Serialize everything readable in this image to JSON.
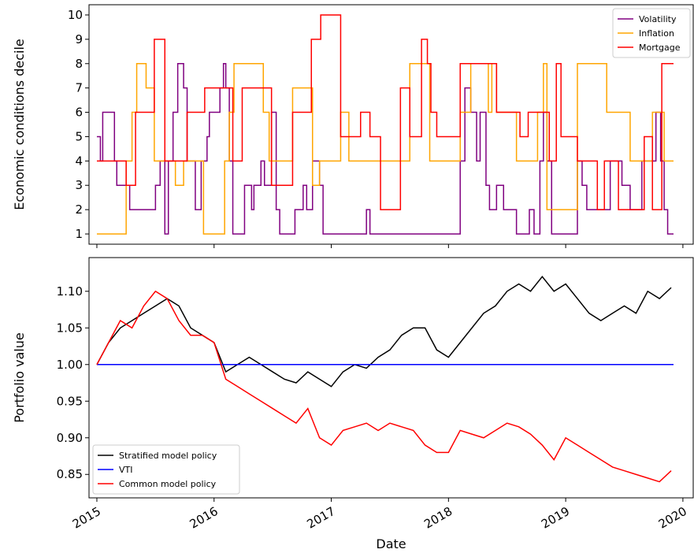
{
  "chart_data": [
    {
      "type": "line",
      "drawstyle": "steps-post",
      "ylabel": "Economic conditions decile",
      "xlim": [
        2014.933,
        2020.088
      ],
      "ylim": [
        0.58,
        10.42
      ],
      "xticks": [
        2015,
        2016,
        2017,
        2018,
        2019,
        2020
      ],
      "yticks": [
        1,
        2,
        3,
        4,
        5,
        6,
        7,
        8,
        9,
        10
      ],
      "legend": "upper right",
      "series": [
        {
          "name": "Volatility",
          "color": "#800080",
          "x": [
            2015.0,
            2015.03,
            2015.05,
            2015.15,
            2015.17,
            2015.28,
            2015.5,
            2015.54,
            2015.58,
            2015.61,
            2015.65,
            2015.69,
            2015.74,
            2015.77,
            2015.84,
            2015.89,
            2015.94,
            2015.96,
            2016.05,
            2016.08,
            2016.1,
            2016.13,
            2016.16,
            2016.26,
            2016.32,
            2016.34,
            2016.4,
            2016.43,
            2016.49,
            2016.53,
            2016.56,
            2016.69,
            2016.76,
            2016.79,
            2016.84,
            2016.9,
            2016.93,
            2017.3,
            2017.33,
            2018.1,
            2018.14,
            2018.19,
            2018.24,
            2018.27,
            2018.32,
            2018.35,
            2018.41,
            2018.47,
            2018.58,
            2018.69,
            2018.73,
            2018.78,
            2018.81,
            2018.84,
            2018.88,
            2019.1,
            2019.14,
            2019.18,
            2019.38,
            2019.48,
            2019.55,
            2019.65,
            2019.77,
            2019.81,
            2019.84,
            2019.87,
            2019.92
          ],
          "values": [
            5,
            4,
            6,
            4,
            3,
            2,
            3,
            4,
            1,
            4,
            6,
            8,
            7,
            4,
            2,
            4,
            5,
            6,
            7,
            8,
            7,
            4,
            1,
            3,
            2,
            3,
            4,
            3,
            6,
            2,
            1,
            2,
            3,
            2,
            4,
            3,
            1,
            2,
            1,
            4,
            7,
            6,
            4,
            6,
            3,
            2,
            3,
            2,
            1,
            2,
            1,
            4,
            6,
            4,
            1,
            4,
            3,
            2,
            4,
            3,
            2,
            4,
            6,
            4,
            2,
            1,
            1
          ]
        },
        {
          "name": "Inflation",
          "color": "#ffa500",
          "x": [
            2015.0,
            2015.25,
            2015.3,
            2015.34,
            2015.42,
            2015.49,
            2015.67,
            2015.74,
            2015.91,
            2016.09,
            2016.13,
            2016.17,
            2016.42,
            2016.47,
            2016.67,
            2016.84,
            2016.9,
            2017.08,
            2017.15,
            2017.67,
            2017.84,
            2018.1,
            2018.19,
            2018.34,
            2018.37,
            2018.41,
            2018.58,
            2018.76,
            2018.81,
            2018.84,
            2019.1,
            2019.35,
            2019.55,
            2019.74,
            2019.84,
            2019.92
          ],
          "values": [
            1,
            4,
            6,
            8,
            7,
            4,
            3,
            4,
            1,
            4,
            6,
            8,
            6,
            4,
            7,
            3,
            4,
            6,
            4,
            8,
            4,
            6,
            8,
            6,
            8,
            6,
            4,
            6,
            8,
            2,
            8,
            6,
            4,
            6,
            4,
            4
          ]
        },
        {
          "name": "Mortgage",
          "color": "#ff0000",
          "x": [
            2015.0,
            2015.25,
            2015.33,
            2015.49,
            2015.58,
            2015.77,
            2015.92,
            2016.16,
            2016.24,
            2016.49,
            2016.67,
            2016.83,
            2016.91,
            2017.08,
            2017.25,
            2017.33,
            2017.42,
            2017.59,
            2017.67,
            2017.77,
            2017.82,
            2017.85,
            2017.9,
            2018.1,
            2018.41,
            2018.61,
            2018.68,
            2018.86,
            2018.92,
            2018.96,
            2019.1,
            2019.27,
            2019.33,
            2019.45,
            2019.67,
            2019.74,
            2019.82,
            2019.92
          ],
          "values": [
            4,
            3,
            6,
            9,
            4,
            6,
            7,
            4,
            7,
            3,
            6,
            9,
            10,
            5,
            6,
            5,
            2,
            7,
            5,
            9,
            8,
            6,
            5,
            8,
            6,
            5,
            6,
            4,
            8,
            5,
            4,
            2,
            4,
            2,
            5,
            2,
            8,
            8
          ]
        }
      ]
    },
    {
      "type": "line",
      "xlabel": "Date",
      "ylabel": "Portfolio value",
      "xlim": [
        2014.933,
        2020.088
      ],
      "ylim": [
        0.818,
        1.146
      ],
      "xticks": [
        2015,
        2016,
        2017,
        2018,
        2019,
        2020
      ],
      "yticks": [
        0.85,
        {
          "value": 0.9,
          "label": "0.90"
        },
        0.95,
        {
          "value": 1.0,
          "label": "1.00"
        },
        1.05,
        {
          "value": 1.1,
          "label": "1.10"
        }
      ],
      "legend": "lower left",
      "series": [
        {
          "name": "Stratified model policy",
          "color": "#000000",
          "x": [
            2015.0,
            2015.1,
            2015.2,
            2015.3,
            2015.4,
            2015.5,
            2015.6,
            2015.7,
            2015.8,
            2015.9,
            2016.0,
            2016.1,
            2016.2,
            2016.3,
            2016.4,
            2016.5,
            2016.6,
            2016.7,
            2016.8,
            2016.9,
            2017.0,
            2017.1,
            2017.2,
            2017.3,
            2017.4,
            2017.5,
            2017.6,
            2017.7,
            2017.8,
            2017.9,
            2018.0,
            2018.1,
            2018.2,
            2018.3,
            2018.4,
            2018.5,
            2018.6,
            2018.7,
            2018.8,
            2018.9,
            2019.0,
            2019.1,
            2019.2,
            2019.3,
            2019.4,
            2019.5,
            2019.6,
            2019.7,
            2019.8,
            2019.9
          ],
          "values": [
            1.0,
            1.03,
            1.05,
            1.06,
            1.07,
            1.08,
            1.09,
            1.08,
            1.05,
            1.04,
            1.03,
            0.99,
            1.0,
            1.01,
            1.0,
            0.99,
            0.98,
            0.975,
            0.99,
            0.98,
            0.97,
            0.99,
            1.0,
            0.995,
            1.01,
            1.02,
            1.04,
            1.05,
            1.05,
            1.02,
            1.01,
            1.03,
            1.05,
            1.07,
            1.08,
            1.1,
            1.11,
            1.1,
            1.12,
            1.1,
            1.11,
            1.09,
            1.07,
            1.06,
            1.07,
            1.08,
            1.07,
            1.1,
            1.09,
            1.105
          ]
        },
        {
          "name": "VTI",
          "color": "#0000ff",
          "x": [
            2015.0,
            2019.92
          ],
          "values": [
            1,
            1
          ]
        },
        {
          "name": "Common model policy",
          "color": "#ff0000",
          "x": [
            2015.0,
            2015.1,
            2015.2,
            2015.3,
            2015.4,
            2015.5,
            2015.6,
            2015.7,
            2015.8,
            2015.9,
            2016.0,
            2016.1,
            2016.2,
            2016.3,
            2016.4,
            2016.5,
            2016.6,
            2016.7,
            2016.8,
            2016.9,
            2017.0,
            2017.1,
            2017.2,
            2017.3,
            2017.4,
            2017.5,
            2017.6,
            2017.7,
            2017.8,
            2017.9,
            2018.0,
            2018.1,
            2018.2,
            2018.3,
            2018.4,
            2018.5,
            2018.6,
            2018.7,
            2018.8,
            2018.9,
            2019.0,
            2019.1,
            2019.2,
            2019.3,
            2019.4,
            2019.5,
            2019.6,
            2019.7,
            2019.8,
            2019.9
          ],
          "values": [
            1.0,
            1.03,
            1.06,
            1.05,
            1.08,
            1.1,
            1.09,
            1.06,
            1.04,
            1.04,
            1.03,
            0.98,
            0.97,
            0.96,
            0.95,
            0.94,
            0.93,
            0.92,
            0.94,
            0.9,
            0.89,
            0.91,
            0.915,
            0.92,
            0.91,
            0.92,
            0.915,
            0.91,
            0.89,
            0.88,
            0.88,
            0.91,
            0.905,
            0.9,
            0.91,
            0.92,
            0.915,
            0.905,
            0.89,
            0.87,
            0.9,
            0.89,
            0.88,
            0.87,
            0.86,
            0.855,
            0.85,
            0.845,
            0.84,
            0.855
          ]
        }
      ]
    }
  ]
}
